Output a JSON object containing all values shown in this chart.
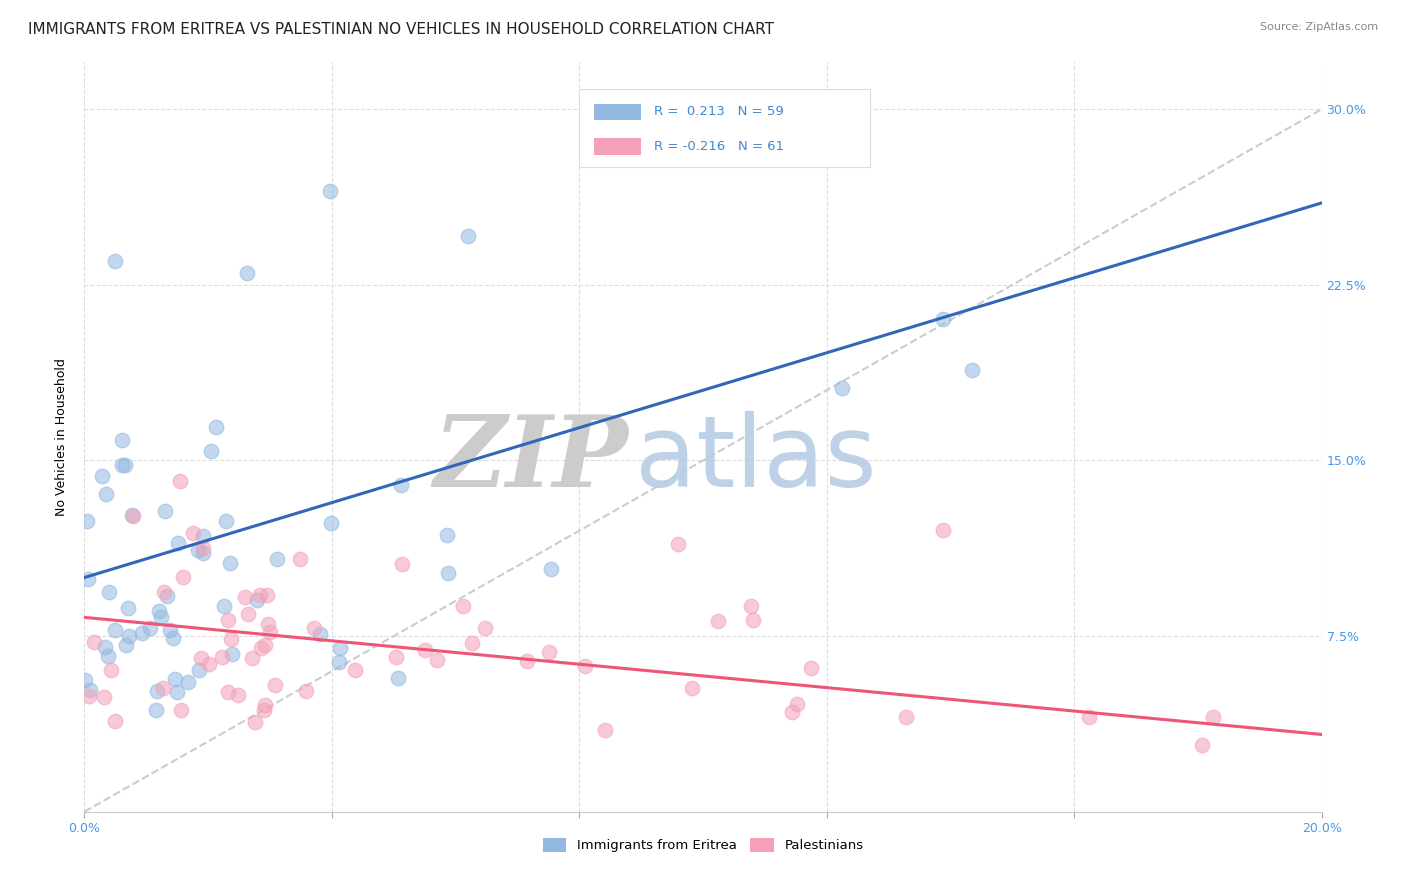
{
  "title": "IMMIGRANTS FROM ERITREA VS PALESTINIAN NO VEHICLES IN HOUSEHOLD CORRELATION CHART",
  "source_text": "Source: ZipAtlas.com",
  "ylabel": "No Vehicles in Household",
  "xlim": [
    0.0,
    0.2
  ],
  "ylim": [
    0.0,
    0.32
  ],
  "ytick_labels_right": [
    "7.5%",
    "15.0%",
    "22.5%",
    "30.0%"
  ],
  "ytick_vals_right": [
    0.075,
    0.15,
    0.225,
    0.3
  ],
  "series1_name": "Immigrants from Eritrea",
  "series1_color": "#92b8e0",
  "series2_name": "Palestinians",
  "series2_color": "#f4a0b8",
  "watermark_zip": "ZIP",
  "watermark_atlas": "atlas",
  "background_color": "#ffffff",
  "grid_color": "#dddddd",
  "title_fontsize": 11,
  "axis_label_fontsize": 9,
  "tick_fontsize": 9,
  "seed": 12,
  "blue_line_color": "#3366bb",
  "pink_line_color": "#ee5577",
  "dashed_line_color": "#cccccc",
  "legend_text_color": "#4488cc",
  "right_tick_color": "#4499ee"
}
